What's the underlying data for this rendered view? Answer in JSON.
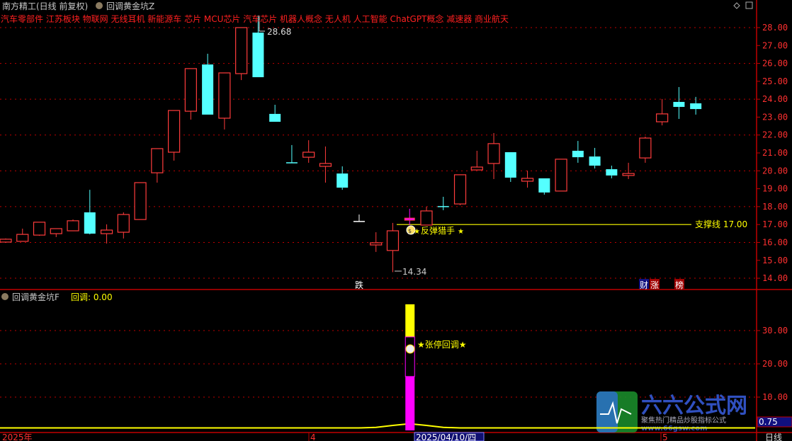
{
  "header": {
    "stock_title": "南方精工(日线 前复权)",
    "indicator_main": "回调黄金坑Z",
    "concepts": "汽车零部件 江苏板块 物联网 无线耳机 新能源车 芯片 MCU芯片 汽车芯片 机器人概念 无人机 人工智能 ChatGPT概念 减速器 商业航天"
  },
  "sub_panel": {
    "indicator_name": "回调黄金坑F",
    "value_label": "回调: 0.00",
    "current_value": "0.75",
    "signal_label": "★张停回调★"
  },
  "annotations": {
    "high_label": "28.68",
    "low_label": "14.34",
    "support_label": "支撑线 17.00",
    "bounce_label": "反弹猎手",
    "signal_die": "跌",
    "signal_cai": "财",
    "signal_zhang": "涨",
    "signal_bang": "榜"
  },
  "footer": {
    "year_label": "2025年",
    "month_4": "4",
    "cursor_date": "2025/04/10/四",
    "month_5": "5",
    "period": "日线"
  },
  "watermark": {
    "brand": "六六公式网",
    "slogan": "聚焦热门精品炒股指标公式",
    "url": "www.66gsw.com"
  },
  "colors": {
    "up": "#ff3c3c",
    "down": "#54ffff",
    "grid": "#c00000",
    "support": "#ffff00",
    "signal": "#ff00ff"
  },
  "chart_data": [
    {
      "type": "candlestick",
      "title": "南方精工(日线 前复权)",
      "ylim": [
        14,
        28
      ],
      "yticks": [
        "28.00",
        "27.00",
        "26.00",
        "25.00",
        "24.00",
        "23.00",
        "22.00",
        "21.00",
        "20.00",
        "19.00",
        "18.00",
        "17.00",
        "16.00",
        "15.00",
        "14.00"
      ],
      "grid": true,
      "support_line": 17.0,
      "candles": [
        {
          "o": 16.02,
          "h": 16.22,
          "l": 15.98,
          "c": 16.18
        },
        {
          "o": 16.06,
          "h": 16.77,
          "l": 16.06,
          "c": 16.45
        },
        {
          "o": 16.41,
          "h": 17.13,
          "l": 16.37,
          "c": 17.13
        },
        {
          "o": 16.49,
          "h": 16.77,
          "l": 16.3,
          "c": 16.77
        },
        {
          "o": 16.65,
          "h": 17.28,
          "l": 16.65,
          "c": 17.21
        },
        {
          "o": 17.68,
          "h": 18.94,
          "l": 16.45,
          "c": 16.49
        },
        {
          "o": 16.49,
          "h": 17.01,
          "l": 15.94,
          "c": 16.69
        },
        {
          "o": 16.57,
          "h": 17.68,
          "l": 16.22,
          "c": 17.56
        },
        {
          "o": 17.28,
          "h": 19.34,
          "l": 17.28,
          "c": 19.34
        },
        {
          "o": 19.89,
          "h": 21.24,
          "l": 19.34,
          "c": 21.24
        },
        {
          "o": 21.04,
          "h": 23.37,
          "l": 20.57,
          "c": 23.37
        },
        {
          "o": 23.33,
          "h": 25.71,
          "l": 22.86,
          "c": 25.71
        },
        {
          "o": 25.94,
          "h": 26.54,
          "l": 23.14,
          "c": 23.14
        },
        {
          "o": 22.94,
          "h": 25.47,
          "l": 22.31,
          "c": 25.47
        },
        {
          "o": 25.43,
          "h": 28.0,
          "l": 25.07,
          "c": 28.0
        },
        {
          "o": 27.72,
          "h": 28.68,
          "l": 25.23,
          "c": 25.23
        },
        {
          "o": 23.18,
          "h": 23.69,
          "l": 22.74,
          "c": 22.74
        },
        {
          "o": 20.45,
          "h": 21.44,
          "l": 20.45,
          "c": 20.45
        },
        {
          "o": 20.76,
          "h": 21.71,
          "l": 20.45,
          "c": 21.04
        },
        {
          "o": 20.25,
          "h": 21.36,
          "l": 19.34,
          "c": 20.41
        },
        {
          "o": 19.85,
          "h": 20.25,
          "l": 18.94,
          "c": 19.06
        },
        {
          "o": 17.17,
          "h": 17.56,
          "l": 17.17,
          "c": 17.17,
          "flat": true
        },
        {
          "o": 15.86,
          "h": 16.57,
          "l": 15.47,
          "c": 15.98
        },
        {
          "o": 15.55,
          "h": 17.09,
          "l": 14.34,
          "c": 16.65
        },
        {
          "o": 17.24,
          "h": 17.88,
          "l": 16.97,
          "c": 17.36,
          "highlight": true
        },
        {
          "o": 16.97,
          "h": 18.0,
          "l": 16.97,
          "c": 17.76
        },
        {
          "o": 18.0,
          "h": 18.55,
          "l": 17.8,
          "c": 18.0
        },
        {
          "o": 18.15,
          "h": 19.78,
          "l": 18.08,
          "c": 19.78
        },
        {
          "o": 20.05,
          "h": 21.12,
          "l": 20.05,
          "c": 20.21
        },
        {
          "o": 20.41,
          "h": 22.11,
          "l": 19.54,
          "c": 21.52
        },
        {
          "o": 21.04,
          "h": 21.04,
          "l": 19.38,
          "c": 19.62
        },
        {
          "o": 19.42,
          "h": 20.01,
          "l": 19.06,
          "c": 19.58
        },
        {
          "o": 19.58,
          "h": 19.58,
          "l": 18.67,
          "c": 18.79
        },
        {
          "o": 18.87,
          "h": 20.65,
          "l": 18.87,
          "c": 20.65
        },
        {
          "o": 21.12,
          "h": 21.67,
          "l": 20.45,
          "c": 20.76
        },
        {
          "o": 20.8,
          "h": 21.28,
          "l": 20.13,
          "c": 20.29
        },
        {
          "o": 20.09,
          "h": 20.29,
          "l": 19.58,
          "c": 19.74
        },
        {
          "o": 19.74,
          "h": 20.45,
          "l": 19.54,
          "c": 19.85
        },
        {
          "o": 20.72,
          "h": 21.91,
          "l": 20.45,
          "c": 21.83
        },
        {
          "o": 22.74,
          "h": 24.01,
          "l": 22.54,
          "c": 23.18
        },
        {
          "o": 23.85,
          "h": 24.68,
          "l": 22.9,
          "c": 23.57
        },
        {
          "o": 23.77,
          "h": 24.13,
          "l": 23.14,
          "c": 23.45
        }
      ]
    },
    {
      "type": "bar",
      "title": "回调黄金坑F",
      "ylim": [
        0,
        40
      ],
      "yticks": [
        "30.00",
        "20.00",
        "10.00"
      ],
      "signal_index": 24,
      "signal_stack": {
        "magenta": 16.2,
        "outlined": 28.1,
        "yellow": 37.9
      },
      "line_values": [
        0.75,
        0.75,
        0.75,
        0.75,
        0.75,
        0.75,
        0.75,
        0.75,
        0.75,
        0.75,
        0.75,
        0.75,
        0.75,
        0.75,
        0.75,
        0.75,
        0.75,
        0.75,
        0.75,
        0.75,
        0.75,
        0.75,
        0.9,
        1.5,
        2.0,
        1.5,
        0.9,
        0.75,
        0.75,
        0.75,
        0.75,
        0.75,
        0.75,
        0.75,
        0.75,
        0.75,
        0.75,
        0.75,
        0.75,
        0.75,
        0.75,
        0.75
      ]
    }
  ]
}
